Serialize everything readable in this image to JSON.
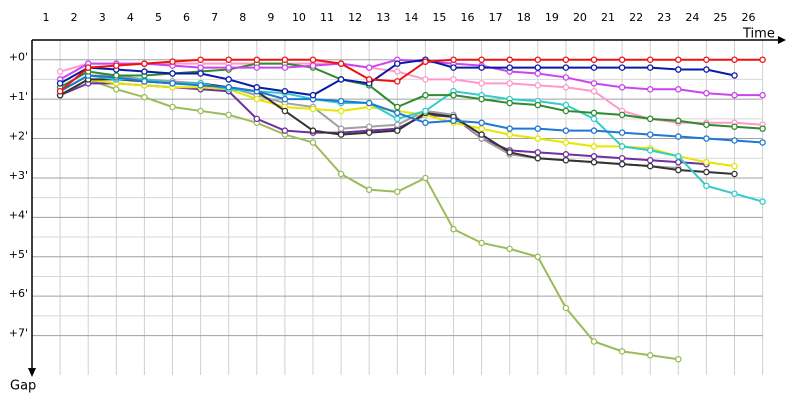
{
  "chart_data": {
    "type": "line",
    "x_label": "Time",
    "y_label": "Gap",
    "categories": [
      1,
      2,
      3,
      4,
      5,
      6,
      7,
      8,
      9,
      10,
      11,
      12,
      13,
      14,
      15,
      16,
      17,
      18,
      19,
      20,
      21,
      22,
      23,
      24,
      25,
      26
    ],
    "ylim": [
      -0.5,
      8.0
    ],
    "yticks": [
      {
        "value": 0,
        "label": "+0'"
      },
      {
        "value": 1,
        "label": "+1'"
      },
      {
        "value": 2,
        "label": "+2'"
      },
      {
        "value": 3,
        "label": "+3'"
      },
      {
        "value": 4,
        "label": "+4'"
      },
      {
        "value": 5,
        "label": "+5'"
      },
      {
        "value": 6,
        "label": "+6'"
      },
      {
        "value": 7,
        "label": "+7'"
      }
    ],
    "y_inverted": true,
    "grid": true,
    "series": [
      {
        "color": "#9bbb59",
        "values": [
          0.9,
          0.5,
          0.75,
          0.95,
          1.2,
          1.3,
          1.4,
          1.6,
          1.9,
          2.1,
          2.9,
          3.3,
          3.35,
          3.0,
          4.3,
          4.65,
          4.8,
          5.0,
          6.3,
          7.15,
          7.4,
          7.5,
          7.6,
          null,
          null,
          null
        ]
      },
      {
        "color": "#ff99cc",
        "values": [
          0.3,
          0.1,
          0.1,
          0.1,
          0.1,
          0.1,
          0.1,
          0.1,
          0.1,
          0.1,
          0.1,
          0.2,
          0.3,
          0.5,
          0.5,
          0.6,
          0.6,
          0.65,
          0.7,
          0.8,
          1.3,
          1.5,
          1.6,
          1.6,
          1.6,
          1.65
        ]
      },
      {
        "color": "#7030a0",
        "values": [
          0.9,
          0.6,
          0.6,
          0.65,
          0.7,
          0.75,
          0.8,
          1.5,
          1.8,
          1.85,
          1.85,
          1.8,
          1.75,
          1.4,
          1.45,
          2.0,
          2.3,
          2.35,
          2.4,
          2.45,
          2.5,
          2.55,
          2.6,
          2.65,
          null,
          null
        ]
      },
      {
        "color": "#a0a0a0",
        "values": [
          0.8,
          0.4,
          0.4,
          0.5,
          0.55,
          0.6,
          0.7,
          0.9,
          1.1,
          1.2,
          1.75,
          1.7,
          1.65,
          1.3,
          1.4,
          2.0,
          2.4,
          2.5,
          2.55,
          2.6,
          2.65,
          2.7,
          2.75,
          null,
          null,
          null
        ]
      },
      {
        "color": "#e6e600",
        "values": [
          0.9,
          0.5,
          0.6,
          0.65,
          0.7,
          0.7,
          0.75,
          1.0,
          1.2,
          1.25,
          1.3,
          1.2,
          1.3,
          1.4,
          1.6,
          1.75,
          1.9,
          2.0,
          2.1,
          2.2,
          2.2,
          2.25,
          2.45,
          2.6,
          2.7,
          null
        ]
      },
      {
        "color": "#333333",
        "values": [
          0.9,
          0.5,
          0.5,
          0.55,
          0.6,
          0.6,
          0.7,
          0.8,
          1.3,
          1.8,
          1.9,
          1.85,
          1.8,
          1.35,
          1.45,
          1.9,
          2.35,
          2.5,
          2.55,
          2.6,
          2.65,
          2.7,
          2.8,
          2.85,
          2.9,
          null
        ]
      },
      {
        "color": "#33cccc",
        "values": [
          0.8,
          0.4,
          0.5,
          0.5,
          0.6,
          0.6,
          0.75,
          0.8,
          0.85,
          1.0,
          1.1,
          1.1,
          1.5,
          1.3,
          0.8,
          0.9,
          1.0,
          1.05,
          1.15,
          1.5,
          2.2,
          2.3,
          2.45,
          3.2,
          3.4,
          3.6
        ]
      },
      {
        "color": "#1f77d4",
        "values": [
          0.8,
          0.4,
          0.45,
          0.55,
          0.6,
          0.65,
          0.7,
          0.8,
          1.0,
          1.0,
          1.05,
          1.1,
          1.35,
          1.6,
          1.55,
          1.6,
          1.75,
          1.75,
          1.8,
          1.8,
          1.85,
          1.9,
          1.95,
          2.0,
          2.05,
          2.1
        ]
      },
      {
        "color": "#2e8b2e",
        "values": [
          0.7,
          0.3,
          0.4,
          0.4,
          0.35,
          0.3,
          0.25,
          0.1,
          0.1,
          0.2,
          0.5,
          0.65,
          1.2,
          0.9,
          0.9,
          1.0,
          1.1,
          1.15,
          1.3,
          1.35,
          1.4,
          1.5,
          1.55,
          1.65,
          1.7,
          1.75
        ]
      },
      {
        "color": "#cc44ee",
        "values": [
          0.5,
          0.1,
          0.1,
          0.1,
          0.15,
          0.2,
          0.2,
          0.2,
          0.2,
          0.15,
          0.1,
          0.2,
          0.0,
          0.05,
          0.1,
          0.15,
          0.3,
          0.35,
          0.45,
          0.6,
          0.7,
          0.75,
          0.75,
          0.85,
          0.9,
          0.9
        ]
      },
      {
        "color": "#0a1aa8",
        "values": [
          0.6,
          0.2,
          0.25,
          0.3,
          0.35,
          0.35,
          0.5,
          0.7,
          0.8,
          0.9,
          0.5,
          0.6,
          0.1,
          0.0,
          0.2,
          0.2,
          0.2,
          0.2,
          0.2,
          0.2,
          0.2,
          0.2,
          0.25,
          0.25,
          0.4,
          null
        ]
      },
      {
        "color": "#ee1111",
        "values": [
          0.8,
          0.2,
          0.15,
          0.1,
          0.05,
          0.0,
          0.0,
          0.0,
          0.0,
          0.0,
          0.1,
          0.5,
          0.55,
          0.05,
          0.0,
          0.0,
          0.0,
          0.0,
          0.0,
          0.0,
          0.0,
          0.0,
          0.0,
          0.0,
          0.0,
          0.0
        ]
      }
    ]
  }
}
